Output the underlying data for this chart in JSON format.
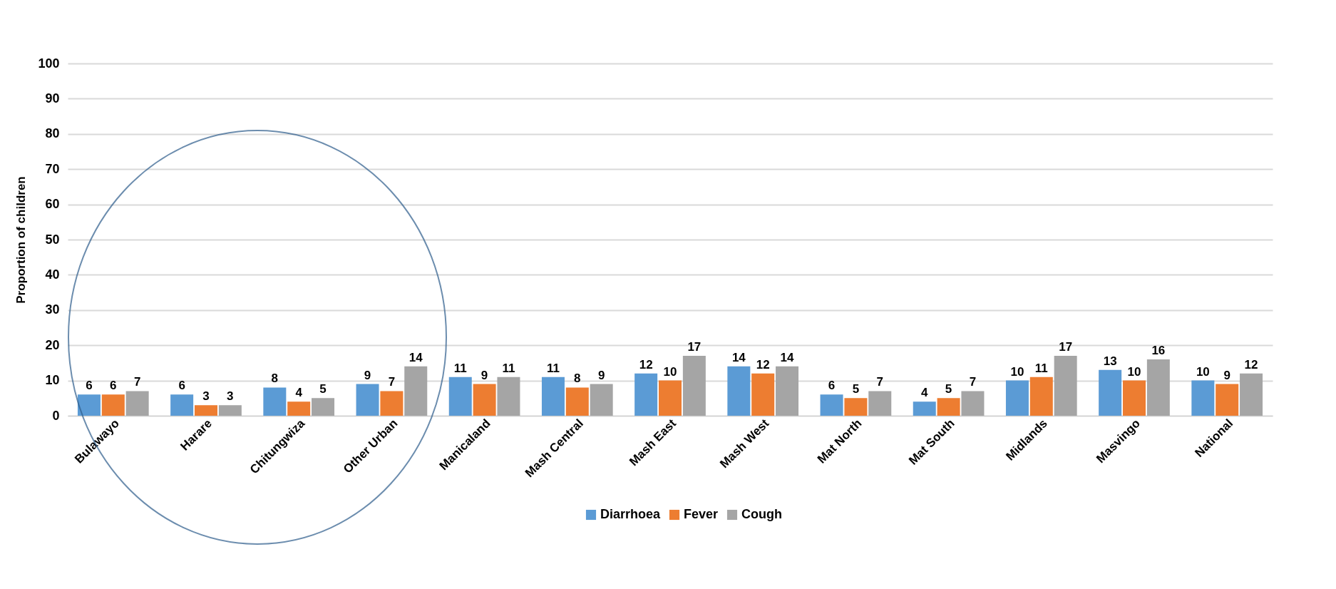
{
  "chart_data": {
    "type": "bar",
    "ylabel": "Proportion of children",
    "categories": [
      "Bulawayo",
      "Harare",
      "Chitungwiza",
      "Other Urban",
      "Manicaland",
      "Mash Central",
      "Mash East",
      "Mash West",
      "Mat North",
      "Mat South",
      "Midlands",
      "Masvingo",
      "National"
    ],
    "series": [
      {
        "name": "Diarrhoea",
        "color": "#5b9bd5",
        "values": [
          6,
          6,
          8,
          9,
          11,
          11,
          12,
          14,
          6,
          4,
          10,
          13,
          10
        ]
      },
      {
        "name": "Fever",
        "color": "#ed7d31",
        "values": [
          6,
          3,
          4,
          7,
          9,
          8,
          10,
          12,
          5,
          5,
          11,
          10,
          9
        ]
      },
      {
        "name": "Cough",
        "color": "#a5a5a5",
        "values": [
          7,
          3,
          5,
          14,
          11,
          9,
          17,
          14,
          7,
          7,
          17,
          16,
          12
        ]
      }
    ],
    "ylim": [
      0,
      100
    ],
    "yticks": [
      0,
      10,
      20,
      30,
      40,
      50,
      60,
      70,
      80,
      90,
      100
    ],
    "grid": "y",
    "legend": "bottom",
    "data_labels": true
  }
}
